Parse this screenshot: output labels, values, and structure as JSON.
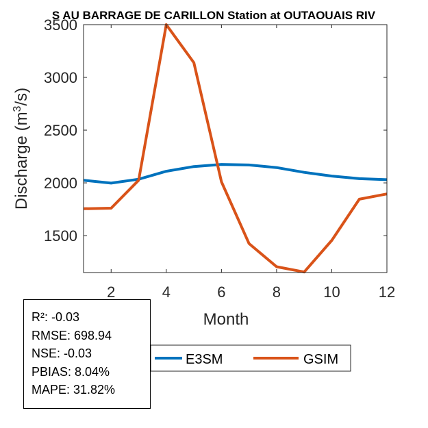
{
  "chart_data": {
    "type": "line",
    "title": "S AU BARRAGE DE CARILLON  Station at  OUTAOUAIS RIV",
    "xlabel": "Month",
    "ylabel_main": "Discharge (m",
    "ylabel_sup": "3",
    "ylabel_tail": "/s)",
    "xlim": [
      1,
      12
    ],
    "ylim": [
      1150,
      3500
    ],
    "xticks": [
      2,
      4,
      6,
      8,
      10,
      12
    ],
    "yticks": [
      1500,
      2000,
      2500,
      3000,
      3500
    ],
    "x": [
      1,
      2,
      3,
      4,
      5,
      6,
      7,
      8,
      9,
      10,
      11,
      12
    ],
    "series": [
      {
        "name": "E3SM",
        "color": "#0072BD",
        "values": [
          2025,
          1998,
          2035,
          2110,
          2155,
          2175,
          2170,
          2145,
          2100,
          2065,
          2040,
          2030
        ]
      },
      {
        "name": "GSIM",
        "color": "#D95319",
        "values": [
          1755,
          1760,
          2025,
          3500,
          3140,
          2010,
          1425,
          1205,
          1155,
          1455,
          1845,
          1895
        ]
      }
    ],
    "legend_position": "bottom-center",
    "grid": false
  },
  "stats": {
    "r2": "R²: -0.03",
    "rmse": "RMSE: 698.94",
    "nse": "NSE: -0.03",
    "pbias": "PBIAS: 8.04%",
    "mape": "MAPE: 31.82%"
  }
}
